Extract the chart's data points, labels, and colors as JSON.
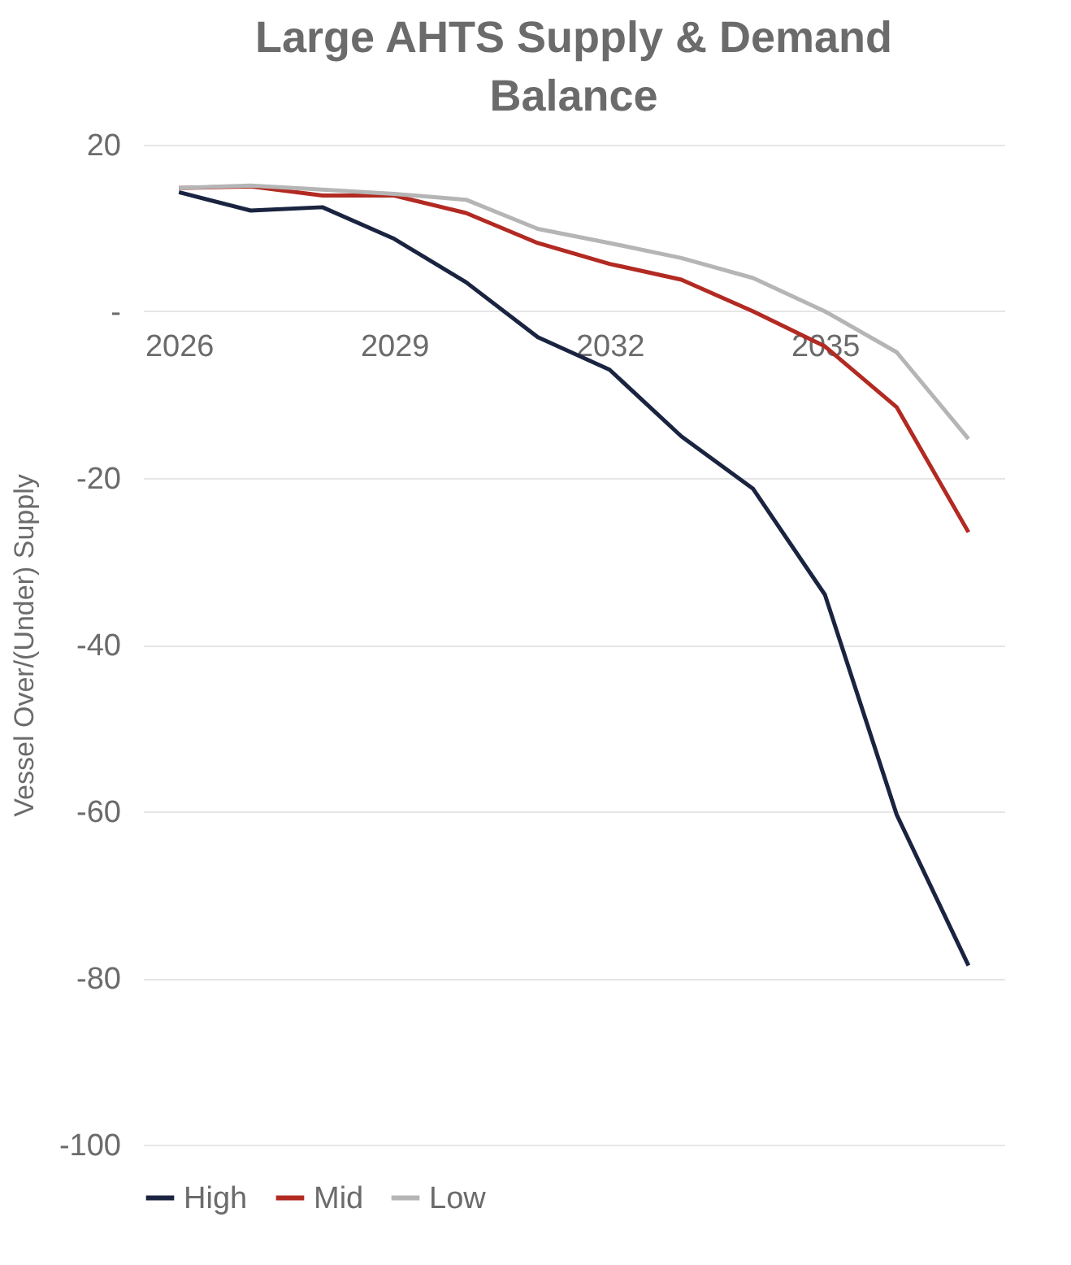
{
  "chart_data": {
    "type": "line",
    "title": "Large AHTS Supply & Demand Balance",
    "ylabel": "Vessel Over/(Under) Supply",
    "categories": [
      "2026",
      null,
      null,
      "2029",
      null,
      null,
      "2032",
      null,
      null,
      "2035",
      null,
      null
    ],
    "series": [
      {
        "name": "High",
        "color": "#1a2440",
        "values": [
          14.3,
          12.1,
          12.5,
          8.7,
          3.5,
          -3.1,
          -7,
          -15,
          -21.3,
          -34,
          -60.4,
          -78.5
        ]
      },
      {
        "name": "Mid",
        "color": "#b22a22",
        "values": [
          14.8,
          15,
          13.9,
          13.9,
          11.8,
          8.2,
          5.7,
          3.8,
          0,
          -4.2,
          -11.5,
          -26.5
        ]
      },
      {
        "name": "Low",
        "color": "#b5b5b5",
        "values": [
          14.8,
          15.1,
          14.6,
          14.1,
          13.4,
          9.9,
          8.2,
          6.4,
          4,
          0,
          -4.9,
          -15.3
        ]
      }
    ],
    "ylim": [
      -100,
      20
    ],
    "yticks": [
      20,
      {
        "value": 0,
        "label": "-"
      },
      -20,
      -40,
      -60,
      -80,
      -100
    ],
    "grid": "y",
    "legend": "bottom",
    "line_style": "solid"
  }
}
